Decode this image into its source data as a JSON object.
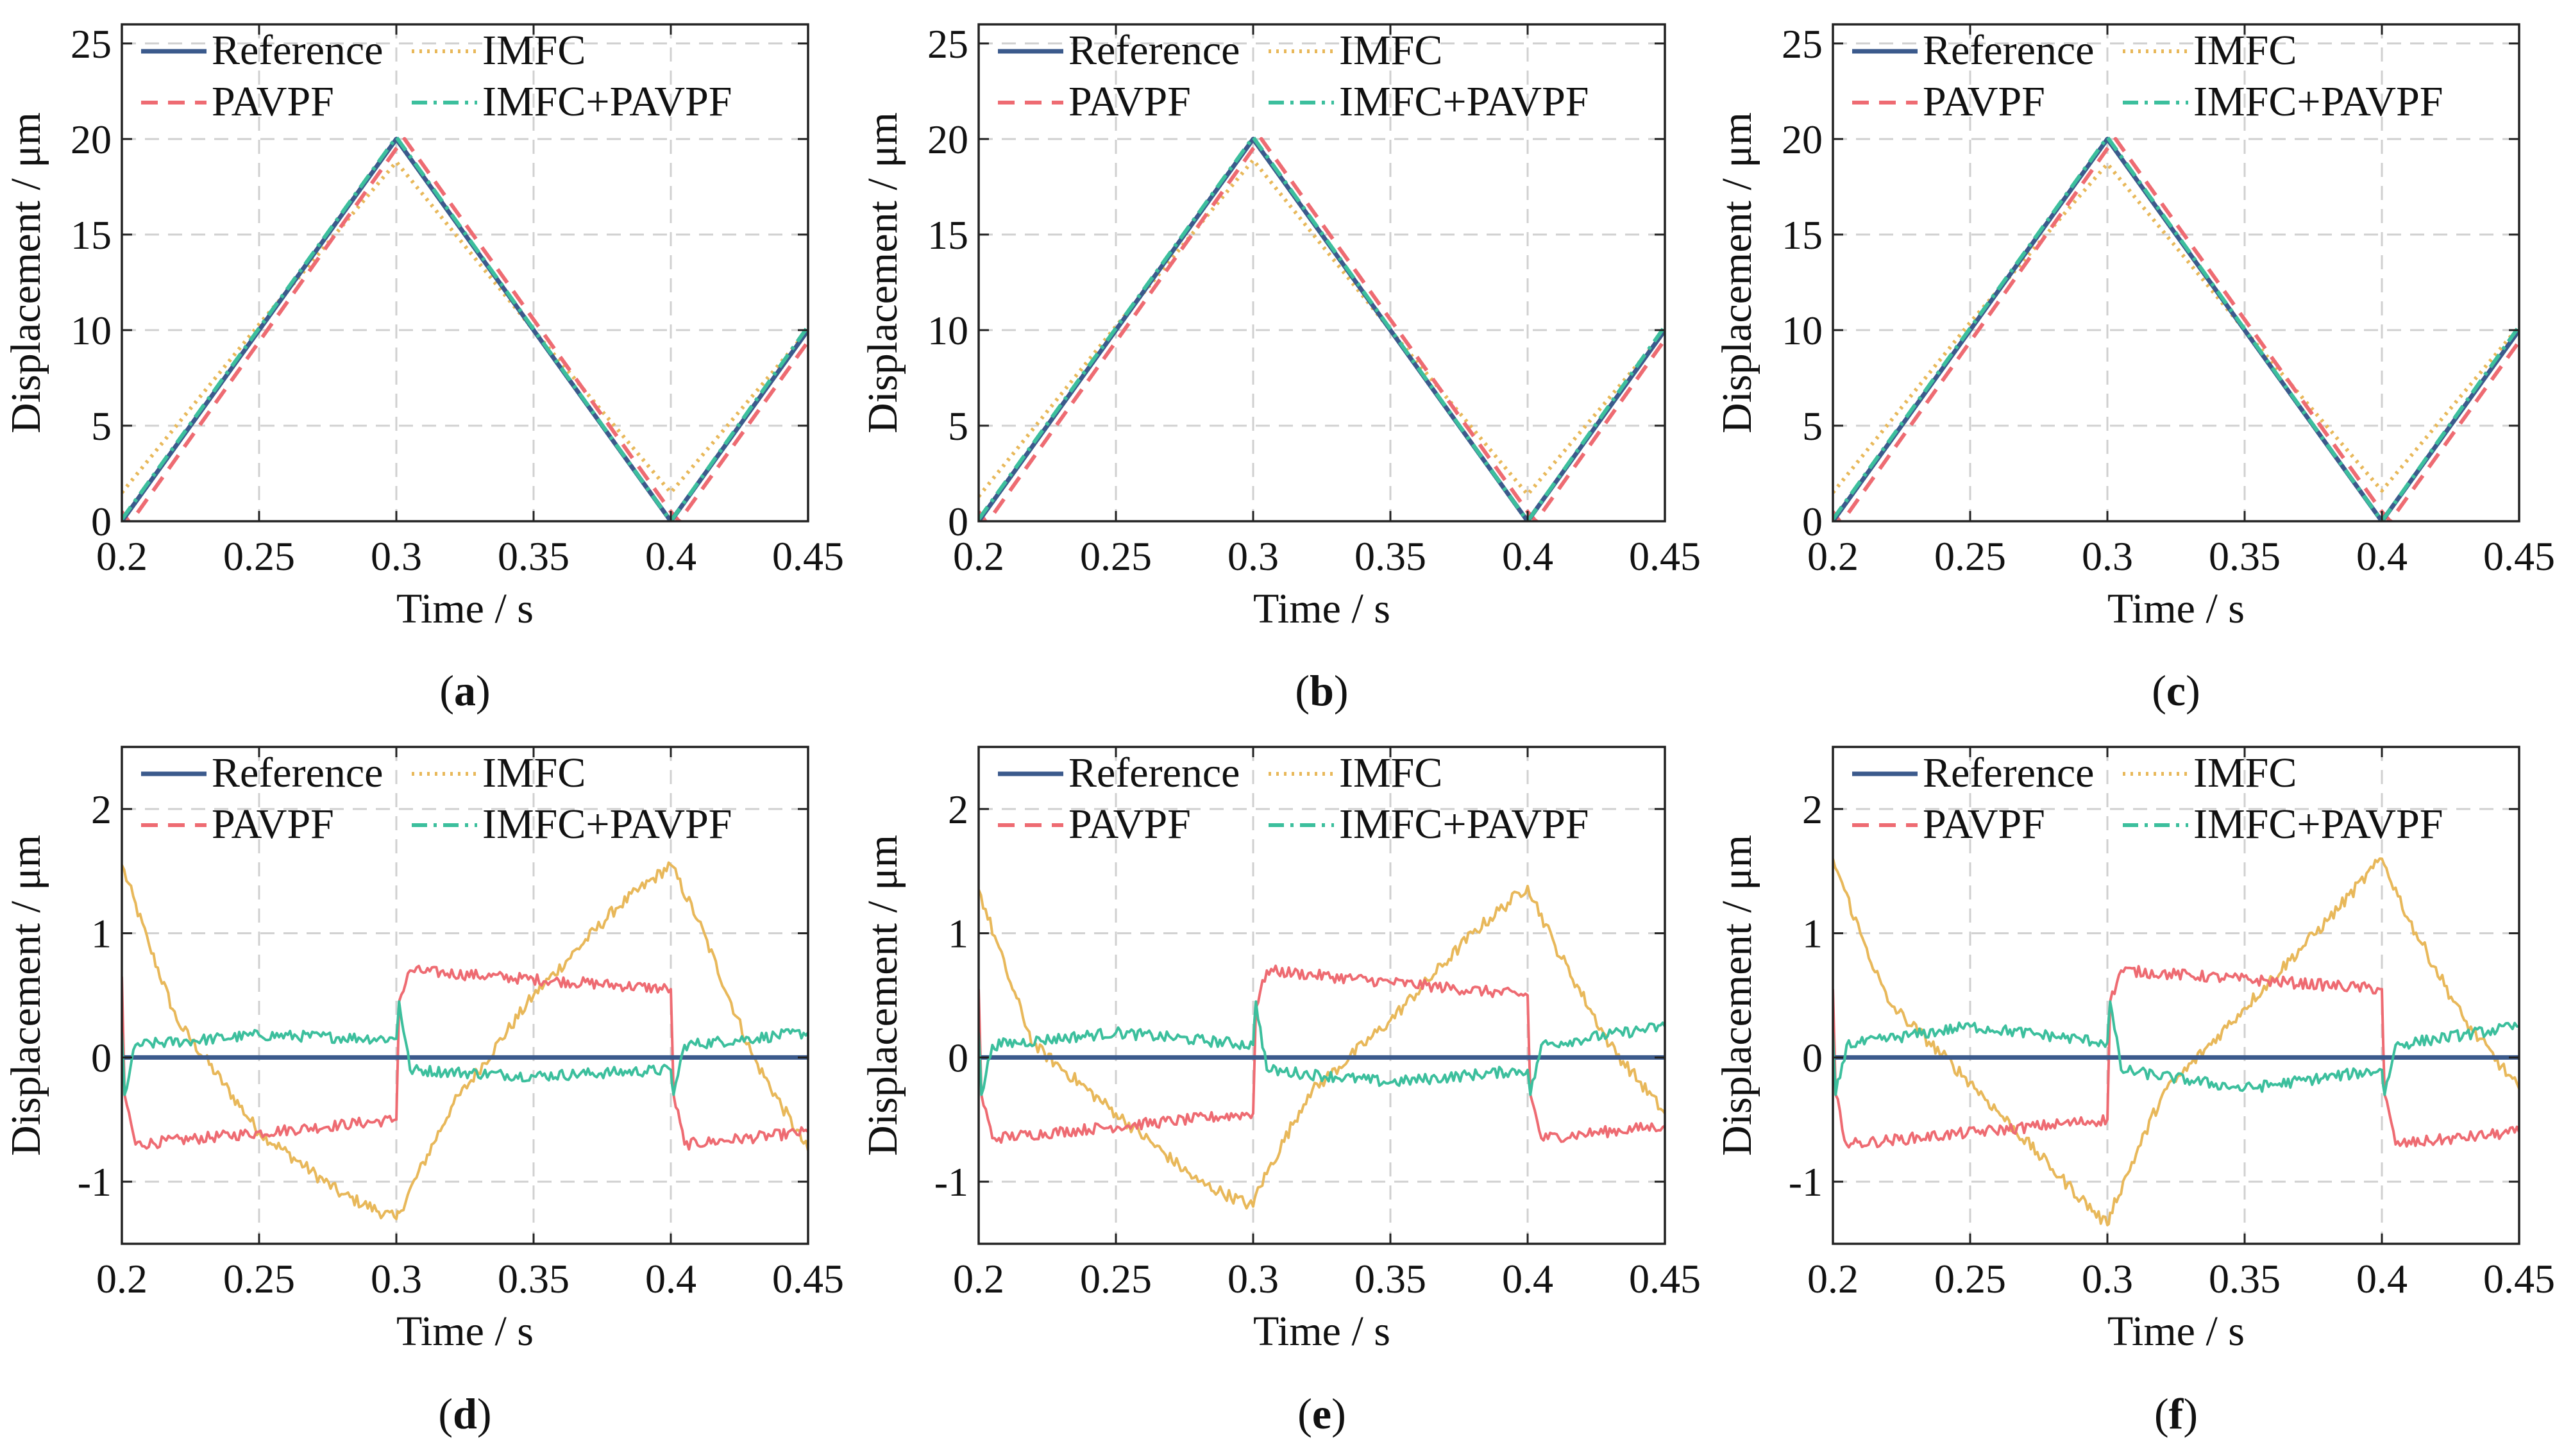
{
  "figure": {
    "panels": [
      "a",
      "b",
      "c",
      "d",
      "e",
      "f"
    ]
  },
  "colors": {
    "Reference": "#3b5a8c",
    "IMFC": "#e8b85a",
    "PAVPF": "#ee6b72",
    "IMFC+PAVPF": "#3cbf9d",
    "grid": "#d0d0d0",
    "axis": "#222222"
  },
  "chart_data": [
    {
      "panel": "a",
      "caption_letter": "a",
      "type": "line",
      "xlabel": "Time / s",
      "ylabel": "Displacement / μm",
      "xlim": [
        0.2,
        0.45
      ],
      "ylim": [
        0,
        26
      ],
      "xticks": [
        0.2,
        0.25,
        0.3,
        0.35,
        0.4,
        0.45
      ],
      "xtick_labels": [
        "0.2",
        "0.25",
        "0.3",
        "0.35",
        "0.4",
        "0.45"
      ],
      "yticks": [
        0,
        5,
        10,
        15,
        20,
        25
      ],
      "ytick_labels": [
        "0",
        "5",
        "10",
        "15",
        "20",
        "25"
      ],
      "grid": true,
      "legend_position": "top-left",
      "series": [
        {
          "name": "Reference",
          "x": [
            0.2,
            0.3,
            0.4,
            0.45
          ],
          "y": [
            0,
            20,
            0,
            10
          ]
        },
        {
          "name": "IMFC",
          "x": [
            0.2,
            0.25,
            0.3,
            0.35,
            0.4,
            0.45
          ],
          "y": [
            1.5,
            10.3,
            18.8,
            10.0,
            1.5,
            10.0
          ]
        },
        {
          "name": "PAVPF",
          "x": [
            0.2,
            0.203,
            0.3,
            0.303,
            0.4,
            0.403,
            0.45
          ],
          "y": [
            0.5,
            -0.1,
            19.5,
            20.0,
            0.5,
            0.0,
            9.4
          ]
        },
        {
          "name": "IMFC+PAVPF",
          "x": [
            0.2,
            0.3,
            0.4,
            0.45
          ],
          "y": [
            0.1,
            20.1,
            0.0,
            10.2
          ]
        }
      ]
    },
    {
      "panel": "b",
      "caption_letter": "b",
      "type": "line",
      "xlabel": "Time / s",
      "ylabel": "Displacement / μm",
      "xlim": [
        0.2,
        0.45
      ],
      "ylim": [
        0,
        26
      ],
      "xticks": [
        0.2,
        0.25,
        0.3,
        0.35,
        0.4,
        0.45
      ],
      "xtick_labels": [
        "0.2",
        "0.25",
        "0.3",
        "0.35",
        "0.4",
        "0.45"
      ],
      "yticks": [
        0,
        5,
        10,
        15,
        20,
        25
      ],
      "ytick_labels": [
        "0",
        "5",
        "10",
        "15",
        "20",
        "25"
      ],
      "grid": true,
      "legend_position": "top-left",
      "series": [
        {
          "name": "Reference",
          "x": [
            0.2,
            0.3,
            0.4,
            0.45
          ],
          "y": [
            0,
            20,
            0,
            10
          ]
        },
        {
          "name": "IMFC",
          "x": [
            0.2,
            0.25,
            0.3,
            0.35,
            0.4,
            0.45
          ],
          "y": [
            1.3,
            10.2,
            18.9,
            10.0,
            1.4,
            9.9
          ]
        },
        {
          "name": "PAVPF",
          "x": [
            0.2,
            0.203,
            0.3,
            0.303,
            0.4,
            0.403,
            0.45
          ],
          "y": [
            0.5,
            -0.1,
            19.5,
            20.0,
            0.5,
            0.0,
            9.5
          ]
        },
        {
          "name": "IMFC+PAVPF",
          "x": [
            0.2,
            0.3,
            0.4,
            0.45
          ],
          "y": [
            0.1,
            20.1,
            0.0,
            10.2
          ]
        }
      ]
    },
    {
      "panel": "c",
      "caption_letter": "c",
      "type": "line",
      "xlabel": "Time / s",
      "ylabel": "Displacement / μm",
      "xlim": [
        0.2,
        0.45
      ],
      "ylim": [
        0,
        26
      ],
      "xticks": [
        0.2,
        0.25,
        0.3,
        0.35,
        0.4,
        0.45
      ],
      "xtick_labels": [
        "0.2",
        "0.25",
        "0.3",
        "0.35",
        "0.4",
        "0.45"
      ],
      "yticks": [
        0,
        5,
        10,
        15,
        20,
        25
      ],
      "ytick_labels": [
        "0",
        "5",
        "10",
        "15",
        "20",
        "25"
      ],
      "grid": true,
      "legend_position": "top-left",
      "series": [
        {
          "name": "Reference",
          "x": [
            0.2,
            0.3,
            0.4,
            0.45
          ],
          "y": [
            0,
            20,
            0,
            10
          ]
        },
        {
          "name": "IMFC",
          "x": [
            0.2,
            0.25,
            0.3,
            0.35,
            0.4,
            0.45
          ],
          "y": [
            1.5,
            10.4,
            18.7,
            10.0,
            1.6,
            10.2
          ]
        },
        {
          "name": "PAVPF",
          "x": [
            0.2,
            0.203,
            0.3,
            0.303,
            0.4,
            0.403,
            0.45
          ],
          "y": [
            0.5,
            -0.1,
            19.5,
            20.0,
            0.5,
            0.0,
            9.4
          ]
        },
        {
          "name": "IMFC+PAVPF",
          "x": [
            0.2,
            0.3,
            0.4,
            0.45
          ],
          "y": [
            0.1,
            20.1,
            0.0,
            10.2
          ]
        }
      ]
    },
    {
      "panel": "d",
      "caption_letter": "d",
      "type": "line",
      "xlabel": "Time / s",
      "ylabel": "Displacement / μm",
      "xlim": [
        0.2,
        0.45
      ],
      "ylim": [
        -1.5,
        2.5
      ],
      "xticks": [
        0.2,
        0.25,
        0.3,
        0.35,
        0.4,
        0.45
      ],
      "xtick_labels": [
        "0.2",
        "0.25",
        "0.3",
        "0.35",
        "0.4",
        "0.45"
      ],
      "yticks": [
        -1,
        0,
        1,
        2
      ],
      "ytick_labels": [
        "-1",
        "0",
        "1",
        "2"
      ],
      "grid": true,
      "legend_position": "top",
      "series": [
        {
          "name": "Reference",
          "x": [
            0.2,
            0.45
          ],
          "y": [
            0,
            0
          ]
        },
        {
          "name": "IMFC",
          "x": [
            0.2,
            0.21,
            0.22,
            0.25,
            0.28,
            0.3,
            0.301,
            0.32,
            0.35,
            0.38,
            0.4,
            0.41,
            0.43,
            0.45
          ],
          "y": [
            1.55,
            0.9,
            0.3,
            -0.6,
            -1.1,
            -1.3,
            -1.25,
            -0.4,
            0.5,
            1.2,
            1.55,
            1.1,
            0.0,
            -0.75
          ]
        },
        {
          "name": "PAVPF",
          "x": [
            0.2,
            0.201,
            0.205,
            0.3,
            0.301,
            0.305,
            0.4,
            0.401,
            0.405,
            0.45
          ],
          "y": [
            0.65,
            -0.3,
            -0.7,
            -0.5,
            0.45,
            0.7,
            0.55,
            -0.3,
            -0.7,
            -0.6
          ]
        },
        {
          "name": "IMFC+PAVPF",
          "x": [
            0.2,
            0.201,
            0.205,
            0.25,
            0.3,
            0.301,
            0.305,
            0.35,
            0.4,
            0.401,
            0.405,
            0.45
          ],
          "y": [
            0.2,
            -0.3,
            0.1,
            0.18,
            0.15,
            0.45,
            -0.1,
            -0.15,
            -0.1,
            -0.3,
            0.1,
            0.2
          ]
        }
      ]
    },
    {
      "panel": "e",
      "caption_letter": "e",
      "type": "line",
      "xlabel": "Time / s",
      "ylabel": "Displacement / μm",
      "xlim": [
        0.2,
        0.45
      ],
      "ylim": [
        -1.5,
        2.5
      ],
      "xticks": [
        0.2,
        0.25,
        0.3,
        0.35,
        0.4,
        0.45
      ],
      "xtick_labels": [
        "0.2",
        "0.25",
        "0.3",
        "0.35",
        "0.4",
        "0.45"
      ],
      "yticks": [
        -1,
        0,
        1,
        2
      ],
      "ytick_labels": [
        "-1",
        "0",
        "1",
        "2"
      ],
      "grid": true,
      "legend_position": "top",
      "series": [
        {
          "name": "Reference",
          "x": [
            0.2,
            0.45
          ],
          "y": [
            0,
            0
          ]
        },
        {
          "name": "IMFC",
          "x": [
            0.2,
            0.21,
            0.22,
            0.25,
            0.28,
            0.3,
            0.301,
            0.32,
            0.35,
            0.38,
            0.4,
            0.41,
            0.43,
            0.45
          ],
          "y": [
            1.35,
            0.7,
            0.1,
            -0.45,
            -1.0,
            -1.2,
            -1.1,
            -0.3,
            0.3,
            1.0,
            1.38,
            0.9,
            0.1,
            -0.45
          ]
        },
        {
          "name": "PAVPF",
          "x": [
            0.2,
            0.201,
            0.205,
            0.3,
            0.301,
            0.305,
            0.4,
            0.401,
            0.405,
            0.45
          ],
          "y": [
            0.55,
            -0.3,
            -0.65,
            -0.45,
            0.4,
            0.7,
            0.5,
            -0.3,
            -0.65,
            -0.55
          ]
        },
        {
          "name": "IMFC+PAVPF",
          "x": [
            0.2,
            0.201,
            0.205,
            0.25,
            0.3,
            0.301,
            0.305,
            0.35,
            0.4,
            0.401,
            0.405,
            0.45
          ],
          "y": [
            0.2,
            -0.3,
            0.1,
            0.2,
            0.1,
            0.45,
            -0.1,
            -0.2,
            -0.1,
            -0.3,
            0.1,
            0.25
          ]
        }
      ]
    },
    {
      "panel": "f",
      "caption_letter": "f",
      "type": "line",
      "xlabel": "Time / s",
      "ylabel": "Displacement / μm",
      "xlim": [
        0.2,
        0.45
      ],
      "ylim": [
        -1.5,
        2.5
      ],
      "xticks": [
        0.2,
        0.25,
        0.3,
        0.35,
        0.4,
        0.45
      ],
      "xtick_labels": [
        "0.2",
        "0.25",
        "0.3",
        "0.35",
        "0.4",
        "0.45"
      ],
      "yticks": [
        -1,
        0,
        1,
        2
      ],
      "ytick_labels": [
        "-1",
        "0",
        "1",
        "2"
      ],
      "grid": true,
      "legend_position": "top",
      "series": [
        {
          "name": "Reference",
          "x": [
            0.2,
            0.45
          ],
          "y": [
            0,
            0
          ]
        },
        {
          "name": "IMFC",
          "x": [
            0.2,
            0.21,
            0.22,
            0.25,
            0.28,
            0.3,
            0.301,
            0.32,
            0.35,
            0.38,
            0.4,
            0.41,
            0.43,
            0.45
          ],
          "y": [
            1.6,
            1.0,
            0.45,
            -0.2,
            -0.9,
            -1.35,
            -1.25,
            -0.3,
            0.4,
            1.1,
            1.6,
            1.1,
            0.3,
            -0.25
          ]
        },
        {
          "name": "PAVPF",
          "x": [
            0.2,
            0.201,
            0.205,
            0.3,
            0.301,
            0.305,
            0.4,
            0.401,
            0.405,
            0.45
          ],
          "y": [
            0.55,
            -0.3,
            -0.7,
            -0.5,
            0.45,
            0.7,
            0.55,
            -0.3,
            -0.7,
            -0.6
          ]
        },
        {
          "name": "IMFC+PAVPF",
          "x": [
            0.2,
            0.201,
            0.205,
            0.25,
            0.3,
            0.301,
            0.305,
            0.35,
            0.4,
            0.401,
            0.405,
            0.45
          ],
          "y": [
            0.2,
            -0.3,
            0.1,
            0.25,
            0.12,
            0.45,
            -0.1,
            -0.25,
            -0.1,
            -0.3,
            0.1,
            0.25
          ]
        }
      ]
    }
  ]
}
